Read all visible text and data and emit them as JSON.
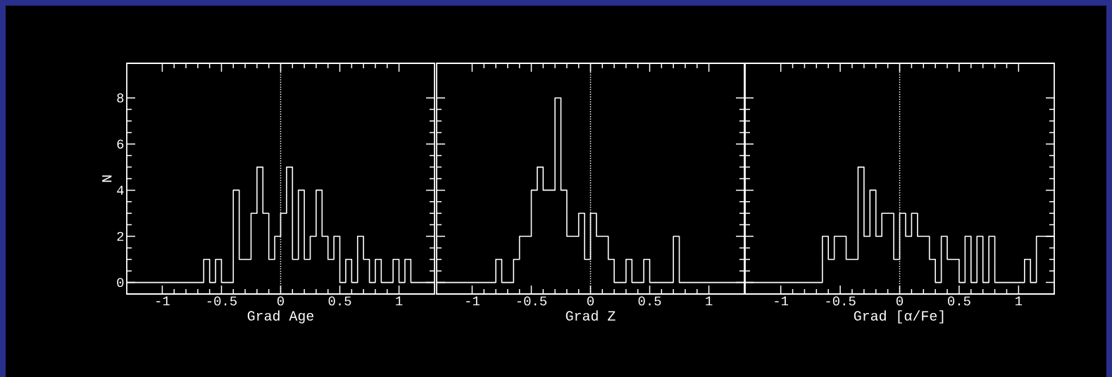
{
  "chart_data": [
    {
      "type": "histogram",
      "xlabel": "Grad Age",
      "ylabel": "N",
      "color": "#ffffff",
      "bins": [
        -1.3,
        -1.25,
        -1.2,
        -1.15,
        -1.1,
        -1.05,
        -1.0,
        -0.95,
        -0.9,
        -0.85,
        -0.8,
        -0.75,
        -0.7,
        -0.65,
        -0.6,
        -0.55,
        -0.5,
        -0.45,
        -0.4,
        -0.35,
        -0.3,
        -0.25,
        -0.2,
        -0.15,
        -0.1,
        -0.05,
        0,
        0.05,
        0.1,
        0.15,
        0.2,
        0.25,
        0.3,
        0.35,
        0.4,
        0.45,
        0.5,
        0.55,
        0.6,
        0.65,
        0.7,
        0.75,
        0.8,
        0.85,
        0.9,
        0.95,
        1.0,
        1.05,
        1.1,
        1.15,
        1.2,
        1.25,
        1.3
      ],
      "values": [
        0,
        0,
        0,
        0,
        0,
        0,
        0,
        0,
        0,
        0,
        0,
        0,
        0,
        1,
        0,
        1,
        0,
        0,
        4,
        1,
        1,
        3,
        5,
        3,
        1,
        2,
        3,
        5,
        1,
        4,
        1,
        2,
        4,
        2,
        1,
        2,
        0,
        1,
        0,
        2,
        1,
        0,
        1,
        0,
        0,
        1,
        0,
        1,
        0,
        0,
        0,
        0
      ],
      "xlim": [
        -1.3,
        1.3
      ],
      "ylim": [
        -0.5,
        9.5
      ],
      "xticks": [
        -1,
        -0.5,
        0,
        0.5,
        1
      ],
      "yticks": [
        0,
        2,
        4,
        6,
        8
      ],
      "ref_lines": [
        {
          "axis": "x",
          "value": 0,
          "color": "#ffffff",
          "line_style": "dotted"
        }
      ]
    },
    {
      "type": "histogram",
      "xlabel": "Grad Z",
      "color": "#ffffff",
      "tick_labels": "x",
      "bins": [
        -1.3,
        -1.25,
        -1.2,
        -1.15,
        -1.1,
        -1.05,
        -1.0,
        -0.95,
        -0.9,
        -0.85,
        -0.8,
        -0.75,
        -0.7,
        -0.65,
        -0.6,
        -0.55,
        -0.5,
        -0.45,
        -0.4,
        -0.35,
        -0.3,
        -0.25,
        -0.2,
        -0.15,
        -0.1,
        -0.05,
        0,
        0.05,
        0.1,
        0.15,
        0.2,
        0.25,
        0.3,
        0.35,
        0.4,
        0.45,
        0.5,
        0.55,
        0.6,
        0.65,
        0.7,
        0.75,
        0.8,
        0.85,
        0.9,
        0.95,
        1.0,
        1.05,
        1.1,
        1.15,
        1.2,
        1.25,
        1.3
      ],
      "values": [
        0,
        0,
        0,
        0,
        0,
        0,
        0,
        0,
        0,
        0,
        1,
        0,
        0,
        1,
        2,
        2,
        4,
        5,
        4,
        4,
        8,
        4,
        2,
        2,
        3,
        1,
        3,
        2,
        2,
        1,
        0,
        0,
        1,
        0,
        0,
        1,
        0,
        0,
        0,
        0,
        2,
        0,
        0,
        0,
        0,
        0,
        0,
        0,
        0,
        0,
        0,
        0
      ],
      "xlim": [
        -1.3,
        1.3
      ],
      "ylim": [
        -0.5,
        9.5
      ],
      "xticks": [
        -1,
        -0.5,
        0,
        0.5,
        1
      ],
      "yticks": [
        0,
        2,
        4,
        6,
        8
      ],
      "ref_lines": [
        {
          "axis": "x",
          "value": 0,
          "color": "#ffffff",
          "line_style": "dotted"
        }
      ]
    },
    {
      "type": "histogram",
      "xlabel": "Grad [α/Fe]",
      "color": "#ffffff",
      "tick_labels": "x",
      "bins": [
        -1.3,
        -1.25,
        -1.2,
        -1.15,
        -1.1,
        -1.05,
        -1.0,
        -0.95,
        -0.9,
        -0.85,
        -0.8,
        -0.75,
        -0.7,
        -0.65,
        -0.6,
        -0.55,
        -0.5,
        -0.45,
        -0.4,
        -0.35,
        -0.3,
        -0.25,
        -0.2,
        -0.15,
        -0.1,
        -0.05,
        0,
        0.05,
        0.1,
        0.15,
        0.2,
        0.25,
        0.3,
        0.35,
        0.4,
        0.45,
        0.5,
        0.55,
        0.6,
        0.65,
        0.7,
        0.75,
        0.8,
        0.85,
        0.9,
        0.95,
        1.0,
        1.05,
        1.1,
        1.15,
        1.2,
        1.25,
        1.3
      ],
      "values": [
        0,
        0,
        0,
        0,
        0,
        0,
        0,
        0,
        0,
        0,
        0,
        0,
        0,
        2,
        1,
        2,
        2,
        1,
        1,
        5,
        2,
        4,
        2,
        3,
        3,
        1,
        3,
        2,
        3,
        2,
        2,
        1,
        0,
        2,
        1,
        1,
        0,
        2,
        0,
        2,
        0,
        2,
        0,
        0,
        0,
        0,
        0,
        1,
        0,
        2,
        2,
        2
      ],
      "xlim": [
        -1.3,
        1.3
      ],
      "ylim": [
        -0.5,
        9.5
      ],
      "xticks": [
        -1,
        -0.5,
        0,
        0.5,
        1
      ],
      "yticks": [
        0,
        2,
        4,
        6,
        8
      ],
      "ref_lines": [
        {
          "axis": "x",
          "value": 0,
          "color": "#ffffff",
          "line_style": "dotted"
        }
      ]
    }
  ]
}
